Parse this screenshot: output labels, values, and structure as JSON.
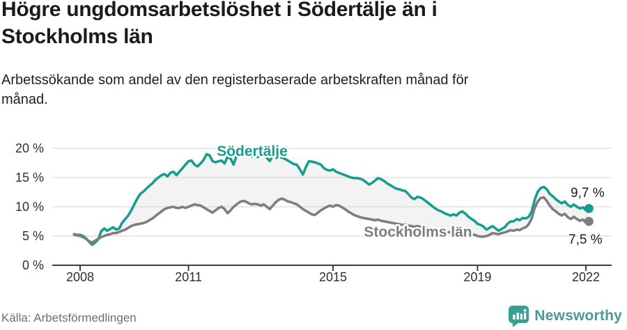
{
  "header": {
    "title_line1": "Högre ungdomsarbetslöshet i Södertälje än i",
    "title_line2": "Stockholms län",
    "subtitle_line1": "Arbetssökande som andel av den registerbaserade arbetskraften månad för",
    "subtitle_line2": "månad."
  },
  "footer": {
    "source": "Källa: Arbetsförmedlingen",
    "logo_text": "Newsworthy",
    "logo_color": "#36a093",
    "logo_text_color": "#4a9a92"
  },
  "chart_data": {
    "type": "line",
    "title": "Högre ungdomsarbetslöshet i Södertälje än i Stockholms län",
    "subtitle": "Arbetssökande som andel av den registerbaserade arbetskraften månad för månad.",
    "unit": "%",
    "frequency": "monthly",
    "x_start": "2007-11",
    "x_end": "2022-02",
    "ylim": [
      0,
      22
    ],
    "grid": true,
    "colors": {
      "fill_between": "#f3f3f3",
      "gridline": "#d9d9d9",
      "axis": "#3d3d3d",
      "tick_text": "#2e2e2e",
      "end_label_text": "#1e1e1e"
    },
    "y_ticks": [
      {
        "value": 20,
        "label": "20 %"
      },
      {
        "value": 15,
        "label": "15 %"
      },
      {
        "value": 10,
        "label": "10 %"
      },
      {
        "value": 5,
        "label": "5 %"
      },
      {
        "value": 0,
        "label": "0 %"
      }
    ],
    "x_ticks": [
      {
        "value": 2008,
        "label": "2008"
      },
      {
        "value": 2011,
        "label": "2011"
      },
      {
        "value": 2015,
        "label": "2015"
      },
      {
        "value": 2019,
        "label": "2019"
      },
      {
        "value": 2022,
        "label": "2022"
      }
    ],
    "series": [
      {
        "name": "Södertälje",
        "color": "#189d90",
        "end_label": "9,7 %",
        "end_value": 9.7,
        "values": [
          5.3,
          5.2,
          5.2,
          5.0,
          4.6,
          4.0,
          3.5,
          3.9,
          4.4,
          5.8,
          6.3,
          5.9,
          6.2,
          6.5,
          6.1,
          6.3,
          7.3,
          7.9,
          8.5,
          9.4,
          10.4,
          11.4,
          12.2,
          12.6,
          13.1,
          13.6,
          14.0,
          14.6,
          15.0,
          15.4,
          15.6,
          15.2,
          15.8,
          16.0,
          15.4,
          16.0,
          16.6,
          17.2,
          17.8,
          17.9,
          17.2,
          16.9,
          17.4,
          18.0,
          19.0,
          18.8,
          17.8,
          17.6,
          17.8,
          17.9,
          17.4,
          18.6,
          18.2,
          17.2,
          18.8,
          18.9,
          19.1,
          19.3,
          18.9,
          18.6,
          18.8,
          18.5,
          18.9,
          19.0,
          18.4,
          17.8,
          18.8,
          18.7,
          18.6,
          18.4,
          18.2,
          17.9,
          17.6,
          17.3,
          17.2,
          16.4,
          15.5,
          16.8,
          17.8,
          17.7,
          17.6,
          17.4,
          17.2,
          16.6,
          16.3,
          16.2,
          16.4,
          16.0,
          15.8,
          15.6,
          15.4,
          15.2,
          15.0,
          14.9,
          14.9,
          14.8,
          14.6,
          14.2,
          13.8,
          14.1,
          14.5,
          14.9,
          14.7,
          14.4,
          14.0,
          13.7,
          13.4,
          13.1,
          13.0,
          12.8,
          12.7,
          12.2,
          11.6,
          11.3,
          11.7,
          11.6,
          11.3,
          10.9,
          10.5,
          10.1,
          9.7,
          9.4,
          9.2,
          8.9,
          8.7,
          8.5,
          8.7,
          8.5,
          9.0,
          9.2,
          8.8,
          8.3,
          7.9,
          7.6,
          7.1,
          6.9,
          6.6,
          6.1,
          6.4,
          6.7,
          6.3,
          5.9,
          6.2,
          6.5,
          7.1,
          7.5,
          7.5,
          7.9,
          7.7,
          8.1,
          8.0,
          8.3,
          9.2,
          11.2,
          12.6,
          13.2,
          13.4,
          13.0,
          12.2,
          11.8,
          11.3,
          10.9,
          10.6,
          10.9,
          10.3,
          10.0,
          10.4,
          10.0,
          9.7,
          9.9,
          9.4,
          9.7
        ]
      },
      {
        "name": "Stockholms län",
        "color": "#7e7e7e",
        "end_label": "7,5 %",
        "end_value": 7.5,
        "values": [
          5.2,
          5.1,
          5.0,
          4.8,
          4.5,
          4.1,
          3.9,
          4.2,
          4.5,
          4.8,
          5.0,
          5.2,
          5.3,
          5.5,
          5.5,
          5.7,
          5.9,
          6.1,
          6.4,
          6.7,
          6.9,
          7.0,
          7.1,
          7.2,
          7.4,
          7.7,
          8.0,
          8.4,
          8.8,
          9.2,
          9.6,
          9.8,
          9.9,
          10.0,
          9.8,
          9.8,
          10.0,
          9.8,
          10.0,
          10.2,
          10.4,
          10.3,
          10.2,
          9.9,
          9.6,
          9.3,
          9.0,
          9.4,
          9.8,
          10.0,
          9.6,
          8.9,
          9.4,
          10.0,
          10.4,
          10.8,
          11.0,
          10.9,
          10.6,
          10.4,
          10.5,
          10.4,
          10.2,
          10.4,
          10.0,
          9.6,
          10.2,
          10.8,
          11.2,
          11.4,
          11.2,
          10.9,
          10.8,
          10.6,
          10.4,
          10.0,
          9.6,
          9.3,
          9.0,
          8.7,
          8.6,
          9.0,
          9.4,
          9.7,
          10.0,
          10.2,
          10.0,
          10.3,
          10.2,
          9.9,
          9.6,
          9.2,
          8.9,
          8.6,
          8.4,
          8.2,
          8.1,
          8.0,
          7.9,
          7.8,
          7.7,
          7.8,
          7.6,
          7.5,
          7.4,
          7.3,
          7.2,
          7.1,
          7.0,
          6.9,
          6.9,
          6.8,
          6.7,
          6.6,
          6.7,
          6.6,
          6.5,
          6.4,
          6.3,
          6.2,
          6.1,
          6.0,
          5.9,
          5.8,
          5.7,
          5.6,
          5.7,
          5.8,
          6.0,
          5.9,
          5.7,
          5.5,
          5.3,
          5.2,
          5.0,
          4.9,
          4.9,
          5.0,
          5.2,
          5.5,
          5.4,
          5.3,
          5.5,
          5.6,
          5.8,
          6.0,
          5.9,
          6.1,
          6.0,
          6.3,
          6.5,
          7.0,
          8.0,
          9.8,
          10.9,
          11.5,
          11.6,
          11.0,
          10.2,
          9.6,
          9.2,
          8.8,
          8.5,
          8.8,
          8.2,
          7.9,
          8.3,
          7.9,
          7.6,
          7.8,
          7.3,
          7.5
        ]
      }
    ],
    "legend_position": "inline-labels"
  }
}
